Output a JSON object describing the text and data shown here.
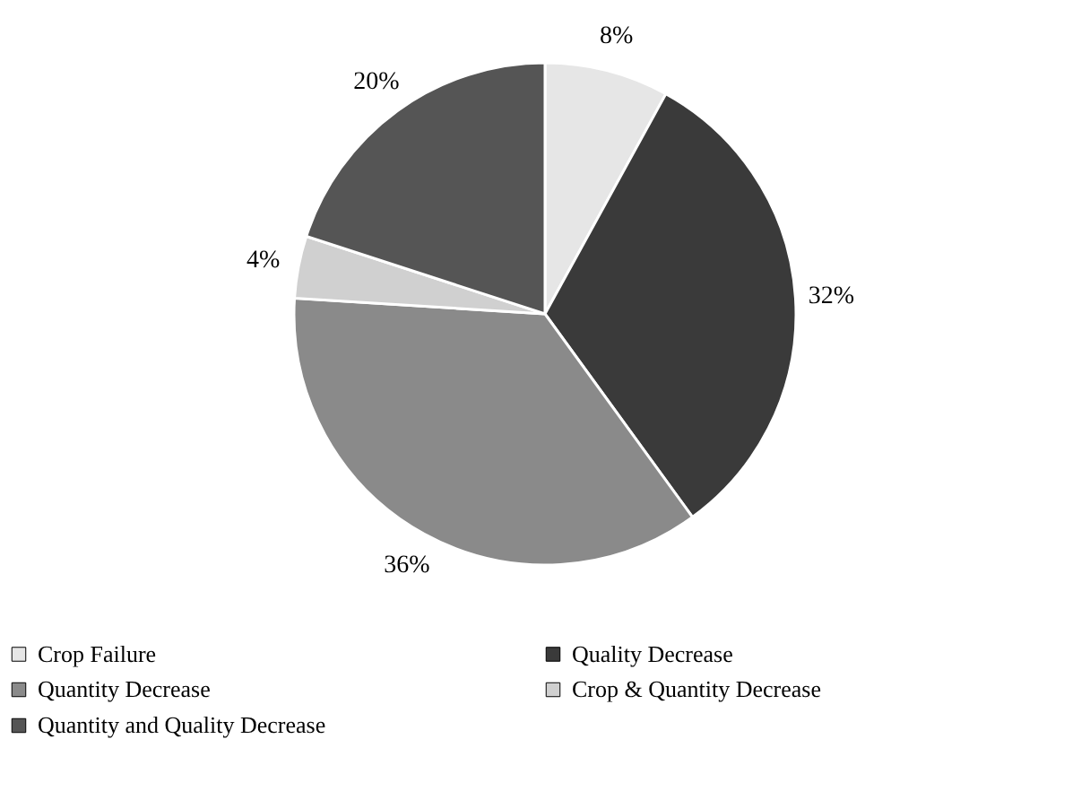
{
  "chart_data": {
    "type": "pie",
    "categories": [
      "Crop Failure",
      "Quality Decrease",
      "Quantity Decrease",
      "Crop & Quantity Decrease",
      "Quantity and Quality Decrease"
    ],
    "values": [
      8,
      32,
      36,
      4,
      20
    ],
    "colors": [
      "#e6e6e6",
      "#3a3a3a",
      "#8a8a8a",
      "#d0d0d0",
      "#555555"
    ],
    "value_labels": [
      "8%",
      "32%",
      "36%",
      "4%",
      "20%"
    ],
    "legend": "bottom"
  }
}
